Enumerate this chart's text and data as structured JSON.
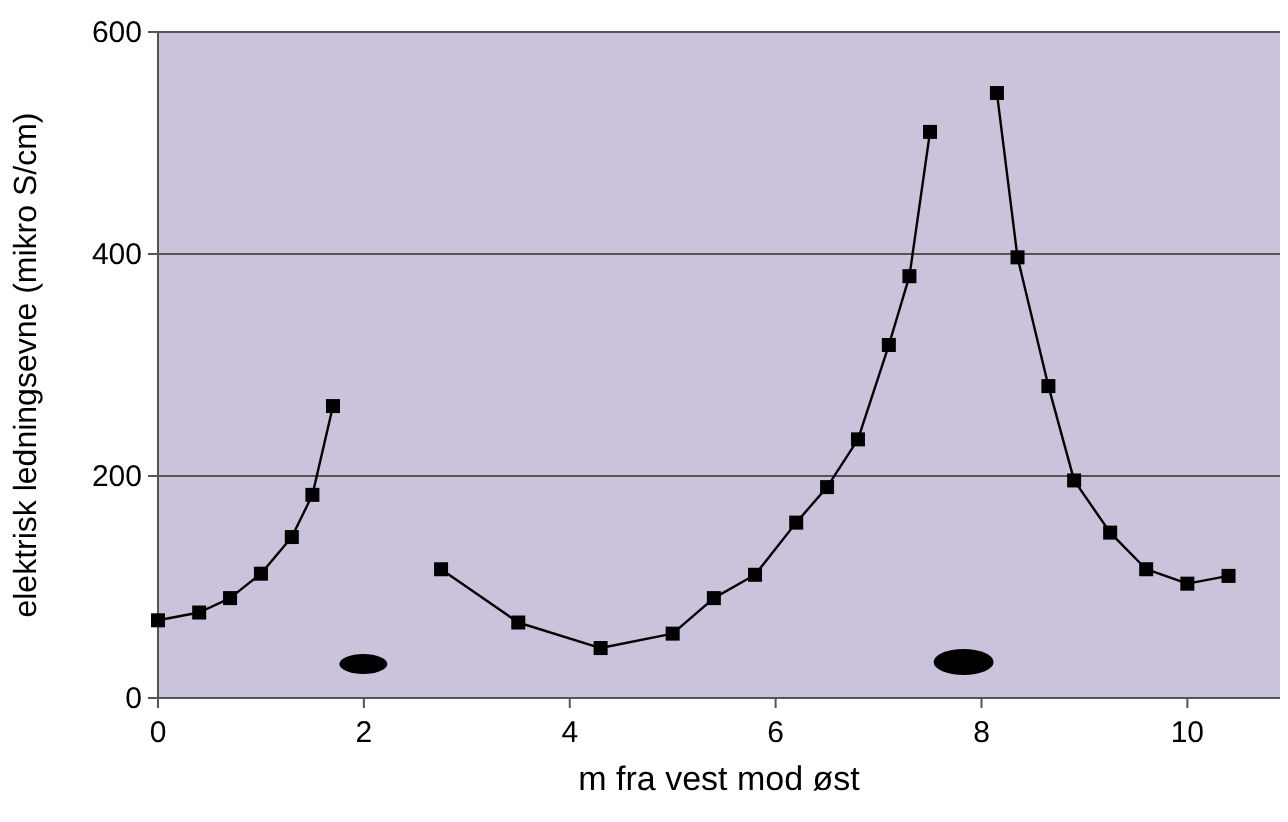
{
  "chart_data": {
    "type": "line",
    "xlabel": "m fra vest mod øst",
    "ylabel": "elektrisk ledningsevne (mikro S/cm)",
    "xlim": [
      0,
      10.9
    ],
    "xticks": [
      0,
      2,
      4,
      6,
      8,
      10
    ],
    "ylim": [
      0,
      600
    ],
    "yticks": [
      0,
      200,
      400,
      600
    ],
    "grid": "y",
    "marker": "square",
    "line_style": "solid",
    "series": [
      {
        "color": "#000000",
        "x": [
          0,
          0.4,
          0.7,
          1.0,
          1.3,
          1.5,
          1.7
        ],
        "values": [
          70,
          77,
          90,
          112,
          145,
          183,
          263
        ]
      },
      {
        "color": "#000000",
        "x": [
          2.75,
          3.5,
          4.3,
          5.0,
          5.4,
          5.8,
          6.2,
          6.5,
          6.8,
          7.1,
          7.3,
          7.5
        ],
        "values": [
          116,
          68,
          45,
          58,
          90,
          111,
          158,
          190,
          233,
          318,
          380,
          510
        ]
      },
      {
        "color": "#000000",
        "x": [
          8.15,
          8.35,
          8.65,
          8.9,
          9.25,
          9.6,
          10.0,
          10.4
        ],
        "values": [
          545,
          397,
          281,
          196,
          149,
          116,
          103,
          110
        ]
      }
    ]
  }
}
